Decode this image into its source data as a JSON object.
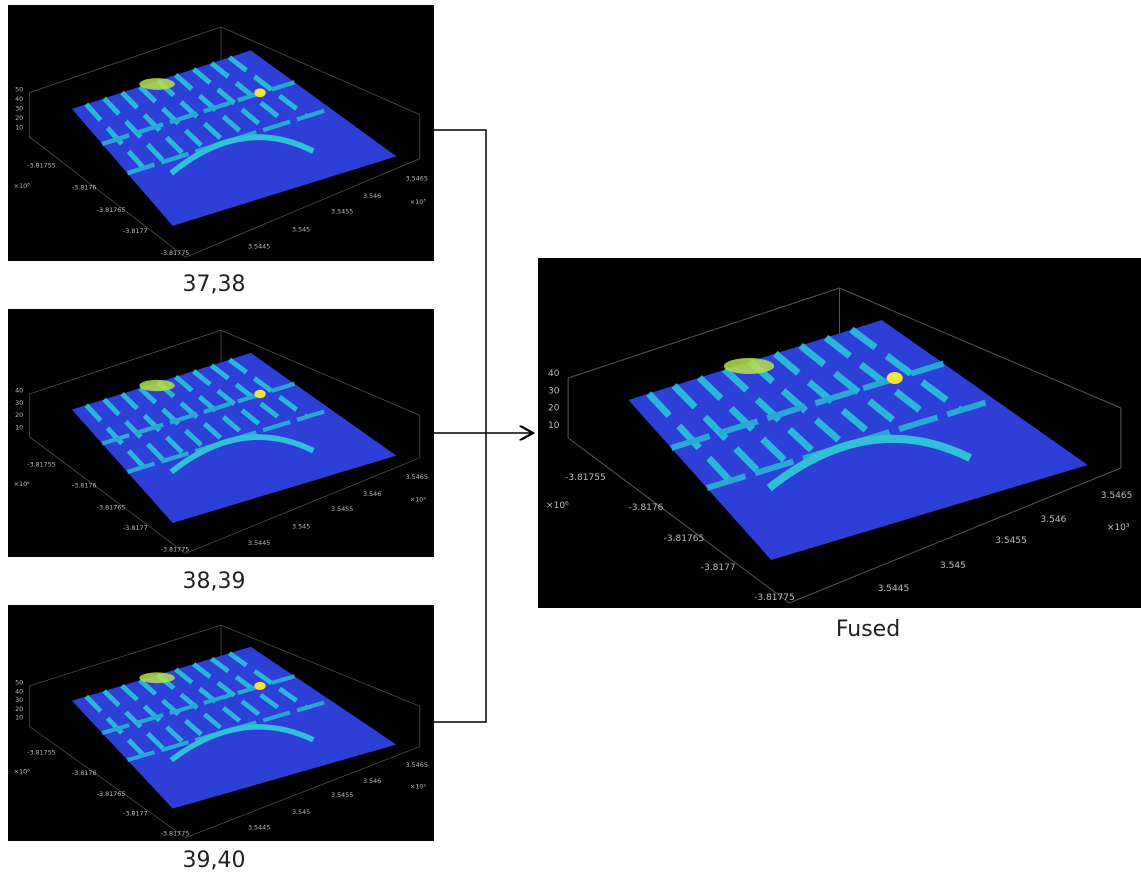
{
  "panels": [
    {
      "label": "37,38",
      "z_ticks": [
        "50",
        "40",
        "30",
        "20",
        "10"
      ],
      "y_ticks": [
        "-3.81755",
        "-3.8176",
        "-3.81765",
        "-3.8177",
        "-3.81775"
      ],
      "y_exponent": "×10⁶",
      "x_ticks": [
        "3.5445",
        "3.545",
        "3.5455",
        "3.546",
        "3.5465"
      ],
      "x_exponent": "×10³"
    },
    {
      "label": "38,39",
      "z_ticks": [
        "40",
        "30",
        "20",
        "10"
      ],
      "y_ticks": [
        "-3.81755",
        "-3.8176",
        "-3.81765",
        "-3.8177",
        "-3.81775"
      ],
      "y_exponent": "×10⁶",
      "x_ticks": [
        "3.5445",
        "3.545",
        "3.5455",
        "3.546",
        "3.5465"
      ],
      "x_exponent": "×10³"
    },
    {
      "label": "39,40",
      "z_ticks": [
        "50",
        "40",
        "30",
        "20",
        "10"
      ],
      "y_ticks": [
        "-3.81755",
        "-3.8176",
        "-3.81765",
        "-3.8177",
        "-3.81775"
      ],
      "y_exponent": "×10⁶",
      "x_ticks": [
        "3.5445",
        "3.545",
        "3.5455",
        "3.546",
        "3.5465"
      ],
      "x_exponent": "×10³"
    }
  ],
  "fused": {
    "label": "Fused",
    "z_ticks": [
      "40",
      "30",
      "20",
      "10"
    ],
    "y_ticks": [
      "-3.81755",
      "-3.8176",
      "-3.81765",
      "-3.8177",
      "-3.81775"
    ],
    "y_exponent": "×10⁶",
    "x_ticks": [
      "3.5445",
      "3.545",
      "3.5455",
      "3.546",
      "3.5465"
    ],
    "x_exponent": "×10³"
  }
}
